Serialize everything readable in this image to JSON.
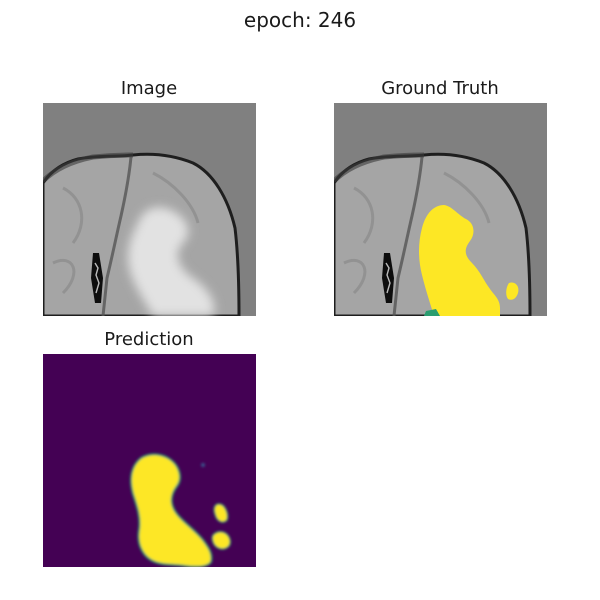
{
  "figure": {
    "suptitle": "epoch: 246",
    "panels": {
      "image": {
        "title": "Image"
      },
      "ground_truth": {
        "title": "Ground Truth"
      },
      "prediction": {
        "title": "Prediction"
      }
    }
  },
  "colors": {
    "background_gray": "#808080",
    "brain_gray": "#a5a5a5",
    "lesion_bright": "#dcdcdc",
    "edge_dark": "#222222",
    "mask_yellow": "#fde725",
    "mask_teal": "#2a9d70",
    "viridis_purple": "#440154"
  }
}
